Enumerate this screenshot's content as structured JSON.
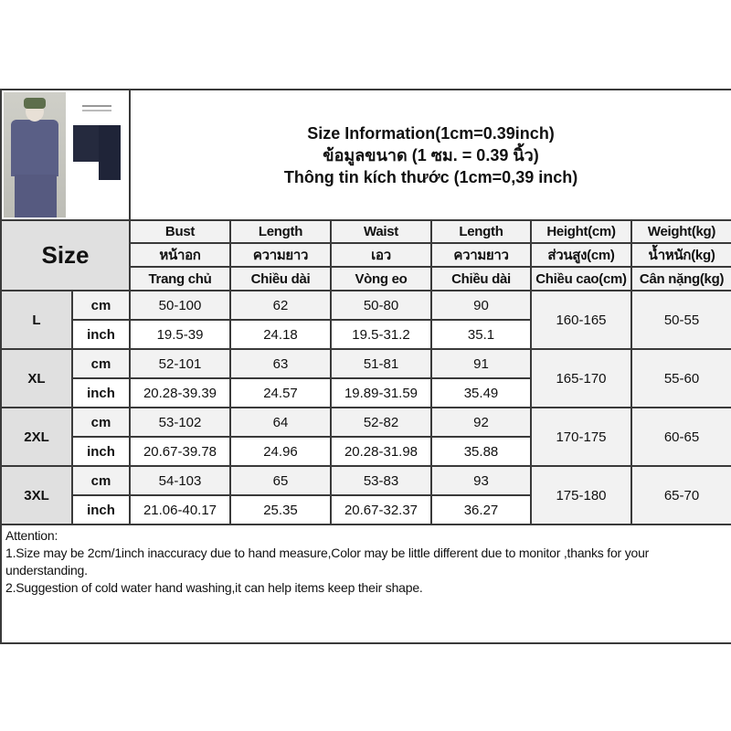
{
  "title_lines": [
    "Size Information(1cm=0.39inch)",
    "ข้อมูลขนาด (1 ซม. = 0.39 นิ้ว)",
    "Thông tin kích thước (1cm=0,39 inch)"
  ],
  "size_header": "Size",
  "columns": [
    [
      "Bust",
      "หน้าอก",
      "Trang chủ"
    ],
    [
      "Length",
      "ความยาว",
      "Chiều dài"
    ],
    [
      "Waist",
      "เอว",
      "Vòng eo"
    ],
    [
      "Length",
      "ความยาว",
      "Chiều dài"
    ],
    [
      "Height(cm)",
      "ส่วนสูง(cm)",
      "Chiều cao(cm)"
    ],
    [
      "Weight(kg)",
      "น้ำหนัก(kg)",
      "Cân nặng(kg)"
    ]
  ],
  "units": {
    "cm": "cm",
    "inch": "inch"
  },
  "sizes": [
    {
      "label": "L",
      "cm": [
        "50-100",
        "62",
        "50-80",
        "90"
      ],
      "inch": [
        "19.5-39",
        "24.18",
        "19.5-31.2",
        "35.1"
      ],
      "height": "160-165",
      "weight": "50-55"
    },
    {
      "label": "XL",
      "cm": [
        "52-101",
        "63",
        "51-81",
        "91"
      ],
      "inch": [
        "20.28-39.39",
        "24.57",
        "19.89-31.59",
        "35.49"
      ],
      "height": "165-170",
      "weight": "55-60"
    },
    {
      "label": "2XL",
      "cm": [
        "53-102",
        "64",
        "52-82",
        "92"
      ],
      "inch": [
        "20.67-39.78",
        "24.96",
        "20.28-31.98",
        "35.88"
      ],
      "height": "170-175",
      "weight": "60-65"
    },
    {
      "label": "3XL",
      "cm": [
        "54-103",
        "65",
        "53-83",
        "93"
      ],
      "inch": [
        "21.06-40.17",
        "25.35",
        "20.67-32.37",
        "36.27"
      ],
      "height": "175-180",
      "weight": "65-70"
    }
  ],
  "attention": {
    "heading": "Attention:",
    "notes": [
      "1.Size may be 2cm/1inch inaccuracy due to hand measure,Color may be little different due to monitor ,thanks for your understanding.",
      "2.Suggestion of cold water hand washing,it can help items keep their shape."
    ]
  }
}
